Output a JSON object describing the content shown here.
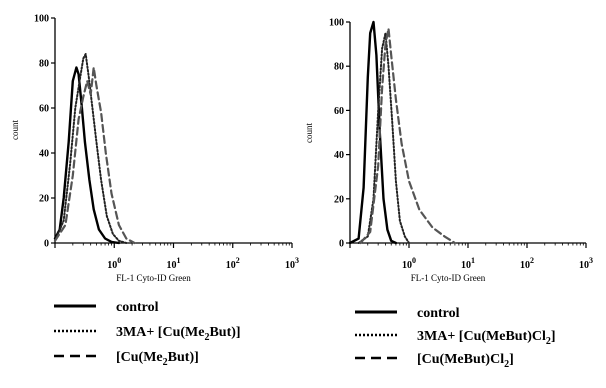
{
  "chart_data": [
    {
      "type": "line",
      "title": "",
      "xlabel": "FL-1 Cyto-ID Green",
      "ylabel": "count",
      "x_scale": "log",
      "xlim": [
        0.1,
        1000
      ],
      "ylim": [
        0,
        100
      ],
      "y_ticks": [
        "0",
        "20",
        "40",
        "60",
        "80",
        "100"
      ],
      "x_ticks": [
        {
          "base": "10",
          "exp": "0"
        },
        {
          "base": "10",
          "exp": "1"
        },
        {
          "base": "10",
          "exp": "2"
        },
        {
          "base": "10",
          "exp": "3"
        }
      ],
      "series": [
        {
          "name": "control",
          "style": "solid",
          "color": "#000000",
          "x": [
            0.1,
            0.12,
            0.14,
            0.17,
            0.2,
            0.23,
            0.25,
            0.28,
            0.32,
            0.38,
            0.45,
            0.55,
            0.7,
            0.9,
            1.2
          ],
          "y": [
            2,
            6,
            20,
            45,
            72,
            78,
            75,
            62,
            45,
            28,
            15,
            6,
            2,
            0.5,
            0
          ]
        },
        {
          "name": "3MA+ [Cu(Me2But)]",
          "style": "dotted",
          "color": "#222222",
          "x": [
            0.1,
            0.14,
            0.18,
            0.22,
            0.26,
            0.3,
            0.33,
            0.37,
            0.42,
            0.5,
            0.6,
            0.75,
            0.95,
            1.2,
            1.6
          ],
          "y": [
            1,
            10,
            35,
            60,
            72,
            82,
            84,
            74,
            62,
            45,
            28,
            12,
            4,
            1,
            0
          ]
        },
        {
          "name": "[Cu(Me2But)]",
          "style": "dashed",
          "color": "#555555",
          "x": [
            0.1,
            0.15,
            0.2,
            0.25,
            0.3,
            0.35,
            0.4,
            0.45,
            0.5,
            0.6,
            0.72,
            0.9,
            1.2,
            1.6,
            2.2
          ],
          "y": [
            1,
            8,
            30,
            55,
            65,
            72,
            66,
            78,
            70,
            58,
            40,
            22,
            8,
            2,
            0
          ]
        }
      ]
    },
    {
      "type": "line",
      "title": "",
      "xlabel": "FL-1 Cyto-ID Green",
      "ylabel": "count",
      "x_scale": "log",
      "xlim": [
        0.1,
        1000
      ],
      "ylim": [
        0,
        100
      ],
      "y_ticks": [
        "0",
        "20",
        "40",
        "60",
        "80",
        "100"
      ],
      "x_ticks": [
        {
          "base": "10",
          "exp": "0"
        },
        {
          "base": "10",
          "exp": "1"
        },
        {
          "base": "10",
          "exp": "2"
        },
        {
          "base": "10",
          "exp": "3"
        }
      ],
      "series": [
        {
          "name": "control",
          "style": "solid",
          "color": "#000000",
          "x": [
            0.1,
            0.14,
            0.17,
            0.2,
            0.22,
            0.25,
            0.28,
            0.32,
            0.37,
            0.43,
            0.5,
            0.6
          ],
          "y": [
            0,
            2,
            25,
            75,
            95,
            100,
            85,
            50,
            20,
            6,
            1,
            0
          ]
        },
        {
          "name": "3MA+ [Cu(MeBut)Cl2]",
          "style": "dotted",
          "color": "#222222",
          "x": [
            0.14,
            0.2,
            0.25,
            0.3,
            0.35,
            0.4,
            0.45,
            0.52,
            0.6,
            0.7,
            0.85,
            1.0
          ],
          "y": [
            0,
            3,
            20,
            60,
            88,
            95,
            80,
            55,
            28,
            10,
            3,
            0
          ]
        },
        {
          "name": "[Cu(MeBut)Cl2]",
          "style": "dashed",
          "color": "#555555",
          "x": [
            0.15,
            0.22,
            0.3,
            0.35,
            0.4,
            0.45,
            0.5,
            0.6,
            0.75,
            1.0,
            1.5,
            2.5,
            4,
            6
          ],
          "y": [
            0,
            5,
            35,
            70,
            90,
            97,
            85,
            65,
            45,
            28,
            15,
            7,
            3,
            0
          ]
        }
      ]
    }
  ],
  "legends": [
    {
      "items": [
        {
          "style": "solid",
          "label": "control",
          "sub": "",
          "tail": ""
        },
        {
          "style": "dotted",
          "label": "3MA+ [Cu(Me",
          "sub": "2",
          "tail": "But)]"
        },
        {
          "style": "dashed",
          "label": "[Cu(Me",
          "sub": "2",
          "tail": "But)]"
        }
      ]
    },
    {
      "items": [
        {
          "style": "solid",
          "label": "control",
          "sub": "",
          "tail": ""
        },
        {
          "style": "dotted",
          "label": "3MA+ [Cu(MeBut)Cl",
          "sub": "2",
          "tail": "]"
        },
        {
          "style": "dashed",
          "label": "[Cu(MeBut)Cl",
          "sub": "2",
          "tail": "]"
        }
      ]
    }
  ]
}
